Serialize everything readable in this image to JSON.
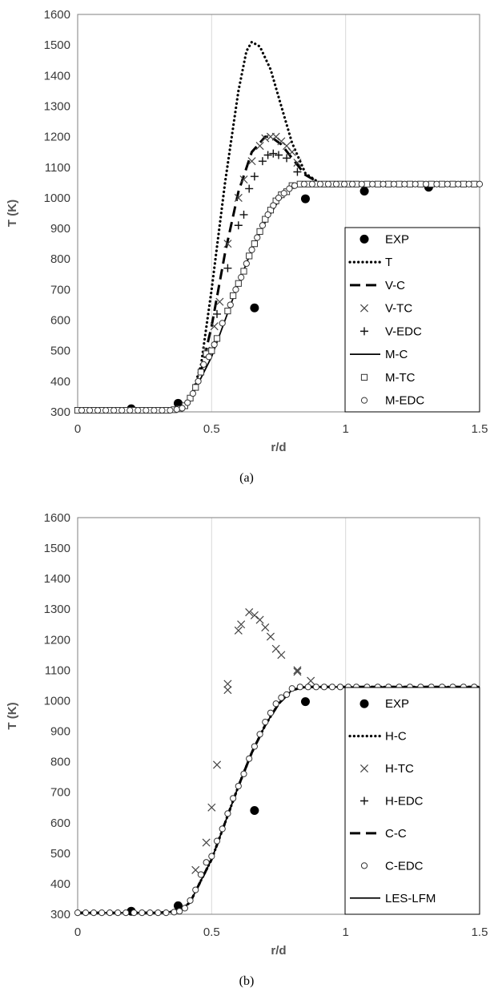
{
  "chart_data": [
    {
      "type": "scatter",
      "caption": "(a)",
      "xlabel": "r/d",
      "ylabel": "T (K)",
      "xlim": [
        0,
        1.5
      ],
      "ylim": [
        300,
        1600
      ],
      "x_ticks": [
        "0",
        "0.5",
        "1",
        "1.5"
      ],
      "y_ticks": [
        "300",
        "400",
        "500",
        "600",
        "700",
        "800",
        "900",
        "1000",
        "1100",
        "1200",
        "1300",
        "1400",
        "1500",
        "1600"
      ],
      "grid": "vertical",
      "legend_position": "bottom-right",
      "series": [
        {
          "name": "EXP",
          "style": "filled-circle",
          "x": [
            0.2,
            0.375,
            0.66,
            0.85,
            1.07,
            1.31
          ],
          "y": [
            310,
            328,
            640,
            997,
            1022,
            1035
          ]
        },
        {
          "name": "T",
          "style": "dotted-line",
          "x": [
            0,
            0.3,
            0.38,
            0.42,
            0.46,
            0.5,
            0.55,
            0.6,
            0.63,
            0.65,
            0.68,
            0.72,
            0.76,
            0.8,
            0.85,
            0.9,
            0.93,
            0.96,
            1.0,
            1.5
          ],
          "y": [
            305,
            305,
            310,
            340,
            450,
            700,
            1050,
            1350,
            1480,
            1510,
            1495,
            1420,
            1300,
            1180,
            1080,
            1050,
            1045,
            1045,
            1045,
            1045
          ]
        },
        {
          "name": "V-C",
          "style": "dashed-line",
          "x": [
            0,
            0.3,
            0.38,
            0.42,
            0.46,
            0.5,
            0.55,
            0.6,
            0.65,
            0.7,
            0.72,
            0.76,
            0.8,
            0.85,
            0.9,
            1.0,
            1.5
          ],
          "y": [
            305,
            305,
            310,
            340,
            430,
            580,
            820,
            1020,
            1150,
            1200,
            1200,
            1175,
            1130,
            1075,
            1050,
            1045,
            1045
          ]
        },
        {
          "name": "V-TC",
          "style": "x-marker",
          "x": [
            0.48,
            0.51,
            0.53,
            0.56,
            0.6,
            0.62,
            0.65,
            0.68,
            0.7,
            0.72,
            0.74,
            0.76,
            0.78,
            0.8,
            0.82
          ],
          "y": [
            500,
            580,
            660,
            850,
            1000,
            1060,
            1120,
            1170,
            1195,
            1200,
            1200,
            1185,
            1170,
            1150,
            1115
          ]
        },
        {
          "name": "V-EDC",
          "style": "plus-marker",
          "x": [
            0.52,
            0.56,
            0.6,
            0.62,
            0.64,
            0.66,
            0.69,
            0.71,
            0.73,
            0.75,
            0.78,
            0.82
          ],
          "y": [
            620,
            770,
            910,
            945,
            1030,
            1070,
            1120,
            1140,
            1145,
            1140,
            1130,
            1085
          ]
        },
        {
          "name": "M-C",
          "style": "solid-line",
          "x": [
            0,
            0.3,
            0.38,
            0.42,
            0.46,
            0.5,
            0.55,
            0.6,
            0.65,
            0.7,
            0.75,
            0.8,
            0.85,
            0.9,
            1.0,
            1.5
          ],
          "y": [
            305,
            305,
            310,
            340,
            410,
            480,
            600,
            720,
            830,
            920,
            990,
            1035,
            1045,
            1045,
            1045,
            1045
          ]
        },
        {
          "name": "M-TC",
          "style": "open-square",
          "x": [
            0,
            0.03,
            0.06,
            0.09,
            0.12,
            0.15,
            0.18,
            0.21,
            0.24,
            0.27,
            0.3,
            0.33,
            0.36,
            0.38,
            0.4,
            0.42,
            0.44,
            0.46,
            0.48,
            0.5,
            0.52,
            0.56,
            0.58,
            0.6,
            0.62,
            0.64,
            0.66,
            0.68,
            0.7,
            0.72,
            0.74,
            0.76,
            0.78,
            0.8,
            0.83,
            0.86,
            0.89,
            0.92,
            0.95,
            0.98,
            1.01,
            1.04,
            1.08,
            1.12,
            1.16,
            1.2,
            1.24,
            1.28,
            1.32,
            1.36,
            1.4,
            1.44,
            1.48
          ],
          "y": [
            305,
            305,
            305,
            305,
            305,
            305,
            305,
            305,
            305,
            305,
            305,
            305,
            307,
            310,
            320,
            345,
            380,
            430,
            490,
            500,
            540,
            630,
            680,
            720,
            760,
            810,
            850,
            890,
            930,
            960,
            990,
            1010,
            1020,
            1040,
            1045,
            1045,
            1045,
            1045,
            1045,
            1045,
            1045,
            1045,
            1045,
            1045,
            1045,
            1045,
            1045,
            1045,
            1045,
            1045,
            1045,
            1045,
            1045
          ]
        },
        {
          "name": "M-EDC",
          "style": "open-circle",
          "x": [
            0.015,
            0.045,
            0.075,
            0.105,
            0.135,
            0.165,
            0.195,
            0.225,
            0.255,
            0.285,
            0.315,
            0.345,
            0.37,
            0.39,
            0.41,
            0.43,
            0.45,
            0.47,
            0.49,
            0.51,
            0.54,
            0.57,
            0.59,
            0.61,
            0.63,
            0.65,
            0.67,
            0.69,
            0.71,
            0.73,
            0.75,
            0.77,
            0.79,
            0.81,
            0.845,
            0.875,
            0.905,
            0.935,
            0.965,
            0.995,
            1.025,
            1.06,
            1.1,
            1.14,
            1.18,
            1.22,
            1.26,
            1.3,
            1.34,
            1.38,
            1.42,
            1.46,
            1.5
          ],
          "y": [
            305,
            305,
            305,
            305,
            305,
            305,
            305,
            305,
            305,
            305,
            305,
            305,
            308,
            312,
            330,
            360,
            400,
            455,
            480,
            520,
            590,
            650,
            700,
            740,
            785,
            830,
            870,
            910,
            945,
            975,
            1000,
            1015,
            1030,
            1040,
            1045,
            1045,
            1045,
            1045,
            1045,
            1045,
            1045,
            1045,
            1045,
            1045,
            1045,
            1045,
            1045,
            1045,
            1045,
            1045,
            1045,
            1045,
            1045
          ]
        }
      ]
    },
    {
      "type": "scatter",
      "caption": "(b)",
      "xlabel": "r/d",
      "ylabel": "T (K)",
      "xlim": [
        0,
        1.5
      ],
      "ylim": [
        300,
        1600
      ],
      "x_ticks": [
        "0",
        "0.5",
        "1",
        "1.5"
      ],
      "y_ticks": [
        "300",
        "400",
        "500",
        "600",
        "700",
        "800",
        "900",
        "1000",
        "1100",
        "1200",
        "1300",
        "1400",
        "1500",
        "1600"
      ],
      "grid": "vertical",
      "legend_position": "bottom-right",
      "series": [
        {
          "name": "EXP",
          "style": "filled-circle",
          "x": [
            0.2,
            0.375,
            0.66,
            0.85,
            1.07,
            1.31
          ],
          "y": [
            310,
            328,
            640,
            997,
            1022,
            1035
          ]
        },
        {
          "name": "H-C",
          "style": "dotted-line",
          "x": [
            0,
            0.3,
            0.38,
            0.42,
            0.46,
            0.5,
            0.55,
            0.6,
            0.65,
            0.7,
            0.75,
            0.8,
            0.85,
            0.9,
            1.0,
            1.5
          ],
          "y": [
            305,
            305,
            310,
            340,
            410,
            480,
            600,
            720,
            830,
            920,
            990,
            1035,
            1045,
            1045,
            1045,
            1045
          ]
        },
        {
          "name": "H-TC",
          "style": "x-marker",
          "x": [
            0.44,
            0.48,
            0.5,
            0.52,
            0.56,
            0.56,
            0.6,
            0.61,
            0.64,
            0.66,
            0.68,
            0.7,
            0.72,
            0.74,
            0.76,
            0.82,
            0.82,
            0.87
          ],
          "y": [
            445,
            535,
            650,
            790,
            1035,
            1055,
            1230,
            1250,
            1290,
            1280,
            1265,
            1240,
            1210,
            1170,
            1150,
            1100,
            1095,
            1065
          ]
        },
        {
          "name": "H-EDC",
          "style": "plus-marker",
          "x": [],
          "y": []
        },
        {
          "name": "C-C",
          "style": "dashed-line",
          "x": [
            0,
            0.3,
            0.38,
            0.42,
            0.46,
            0.5,
            0.55,
            0.6,
            0.65,
            0.7,
            0.75,
            0.8,
            0.85,
            0.9,
            1.0,
            1.5
          ],
          "y": [
            305,
            305,
            310,
            340,
            410,
            480,
            600,
            720,
            830,
            920,
            990,
            1035,
            1045,
            1045,
            1045,
            1045
          ]
        },
        {
          "name": "C-EDC",
          "style": "open-circle",
          "x": [
            0,
            0.03,
            0.06,
            0.09,
            0.12,
            0.15,
            0.18,
            0.21,
            0.24,
            0.27,
            0.3,
            0.33,
            0.36,
            0.38,
            0.4,
            0.42,
            0.44,
            0.46,
            0.48,
            0.5,
            0.52,
            0.54,
            0.56,
            0.58,
            0.6,
            0.62,
            0.64,
            0.66,
            0.68,
            0.7,
            0.72,
            0.74,
            0.76,
            0.78,
            0.8,
            0.83,
            0.86,
            0.89,
            0.92,
            0.95,
            0.98,
            1.01,
            1.04,
            1.08,
            1.12,
            1.16,
            1.2,
            1.24,
            1.28,
            1.32,
            1.36,
            1.4,
            1.44,
            1.48
          ],
          "y": [
            305,
            305,
            305,
            305,
            305,
            305,
            305,
            305,
            305,
            305,
            305,
            305,
            307,
            310,
            320,
            345,
            380,
            430,
            470,
            490,
            540,
            580,
            630,
            680,
            720,
            760,
            810,
            850,
            890,
            930,
            960,
            990,
            1010,
            1020,
            1040,
            1045,
            1045,
            1045,
            1045,
            1045,
            1045,
            1045,
            1045,
            1045,
            1045,
            1045,
            1045,
            1045,
            1045,
            1045,
            1045,
            1045,
            1045,
            1045
          ]
        },
        {
          "name": "LES-LFM",
          "style": "solid-line",
          "x": [
            0,
            0.3,
            0.38,
            0.42,
            0.46,
            0.5,
            0.55,
            0.6,
            0.65,
            0.7,
            0.75,
            0.8,
            0.85,
            0.9,
            1.0,
            1.5
          ],
          "y": [
            305,
            305,
            310,
            340,
            410,
            480,
            600,
            720,
            830,
            920,
            990,
            1035,
            1045,
            1045,
            1045,
            1045
          ]
        }
      ]
    }
  ]
}
